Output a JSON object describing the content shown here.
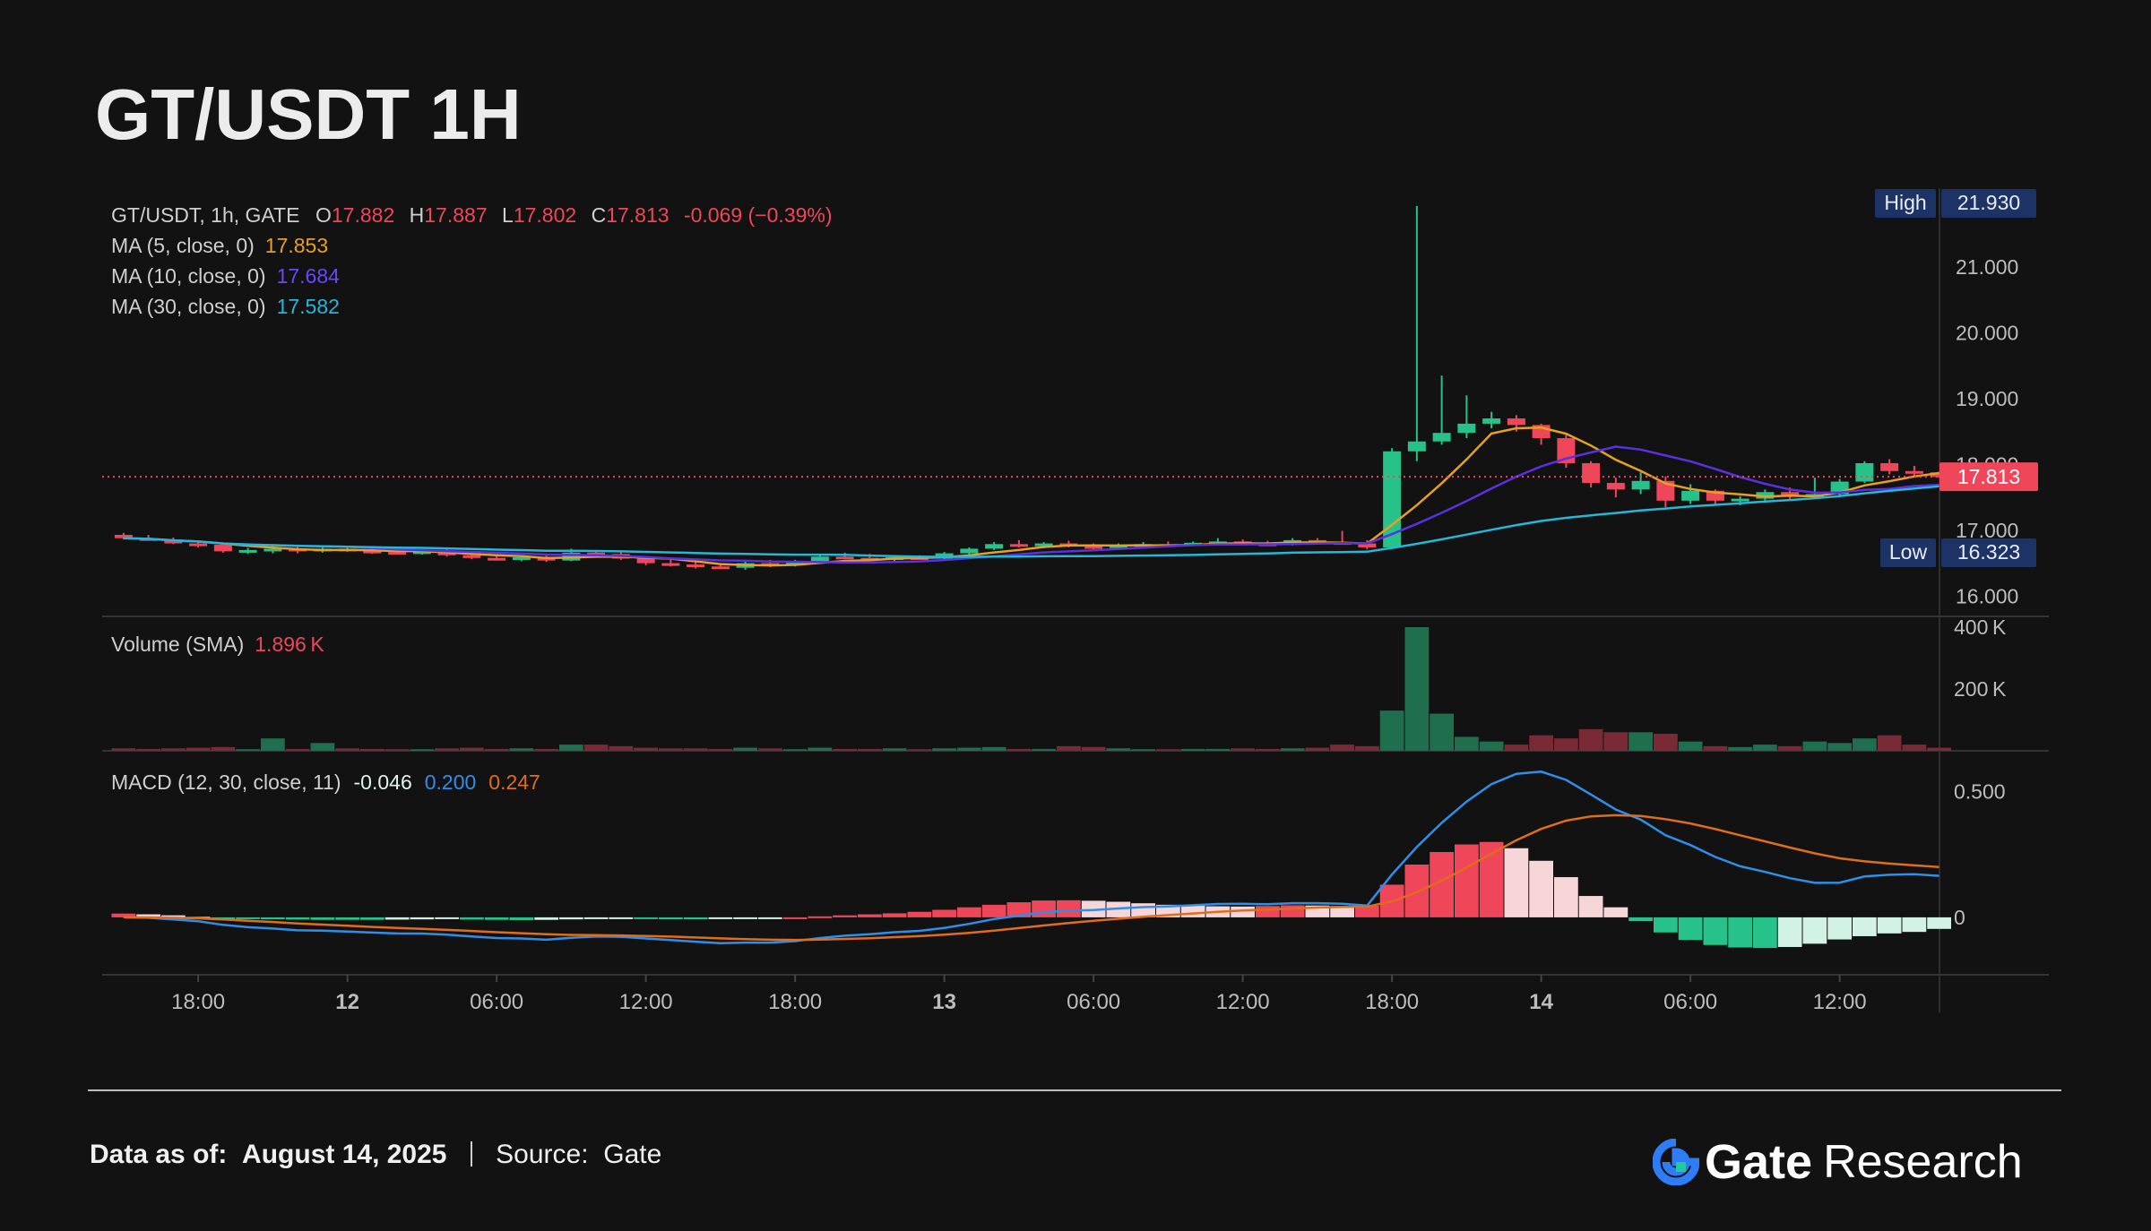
{
  "header": {
    "title": "GT/USDT 1H"
  },
  "legend": {
    "symbol": "GT/USDT, 1h, GATE",
    "o_label": "O",
    "o": "17.882",
    "h_label": "H",
    "h": "17.887",
    "l_label": "L",
    "l": "17.802",
    "c_label": "C",
    "c": "17.813",
    "change": "-0.069 (−0.39%)",
    "ma5_label": "MA (5, close, 0)",
    "ma5": "17.853",
    "ma10_label": "MA (10, close, 0)",
    "ma10": "17.684",
    "ma30_label": "MA (30, close, 0)",
    "ma30": "17.582",
    "volume_label": "Volume (SMA)",
    "volume": "1.896 K",
    "macd_label": "MACD (12, 30, close, 11)",
    "macd_hist": "-0.046",
    "macd_line": "0.200",
    "macd_signal": "0.247"
  },
  "badges": {
    "high_label": "High",
    "high": "21.930",
    "low_label": "Low",
    "low": "16.323",
    "last": "17.813"
  },
  "colors": {
    "up": "#26c28a",
    "down": "#f0465a",
    "ma5": "#e8a020",
    "ma10": "#5a30e0",
    "ma30": "#25b6d8",
    "macd": "#2f8fe8",
    "signal": "#e06d1a",
    "badge_bg": "#1d3366"
  },
  "chart_data": {
    "type": "candlestick",
    "interval": "1h",
    "price_axis": {
      "ticks": [
        "16.000",
        "17.000",
        "18.000",
        "19.000",
        "20.000",
        "21.000"
      ],
      "ylim": [
        15.8,
        22.2
      ]
    },
    "volume_axis": {
      "ticks": [
        "200 K",
        "400 K"
      ],
      "ylim": [
        0,
        400000
      ]
    },
    "macd_axis": {
      "ticks": [
        "0",
        "0.500"
      ],
      "ylim": [
        -0.2,
        0.62
      ]
    },
    "x_ticks": [
      "18:00",
      "12",
      "06:00",
      "12:00",
      "18:00",
      "13",
      "06:00",
      "12:00",
      "18:00",
      "14",
      "06:00",
      "12:00"
    ],
    "x_tick_bold": [
      false,
      true,
      false,
      false,
      false,
      true,
      false,
      false,
      false,
      true,
      false,
      false
    ],
    "x_tick_index": [
      3.5,
      9.5,
      15.5,
      21.5,
      27.5,
      33.5,
      39.5,
      45.5,
      51.5,
      57.5,
      63.5,
      69.5
    ],
    "candles": [
      {
        "o": 16.93,
        "h": 16.96,
        "l": 16.86,
        "c": 16.88,
        "v": 8000
      },
      {
        "o": 16.88,
        "h": 16.93,
        "l": 16.84,
        "c": 16.86,
        "v": 6000
      },
      {
        "o": 16.86,
        "h": 16.89,
        "l": 16.79,
        "c": 16.8,
        "v": 8000
      },
      {
        "o": 16.8,
        "h": 16.84,
        "l": 16.74,
        "c": 16.78,
        "v": 10000
      },
      {
        "o": 16.78,
        "h": 16.81,
        "l": 16.66,
        "c": 16.68,
        "v": 12000
      },
      {
        "o": 16.68,
        "h": 16.73,
        "l": 16.64,
        "c": 16.7,
        "v": 5000
      },
      {
        "o": 16.7,
        "h": 16.76,
        "l": 16.65,
        "c": 16.72,
        "v": 40000
      },
      {
        "o": 16.72,
        "h": 16.76,
        "l": 16.65,
        "c": 16.68,
        "v": 6000
      },
      {
        "o": 16.68,
        "h": 16.74,
        "l": 16.66,
        "c": 16.72,
        "v": 25000
      },
      {
        "o": 16.72,
        "h": 16.75,
        "l": 16.67,
        "c": 16.69,
        "v": 8000
      },
      {
        "o": 16.69,
        "h": 16.72,
        "l": 16.64,
        "c": 16.67,
        "v": 6000
      },
      {
        "o": 16.67,
        "h": 16.71,
        "l": 16.64,
        "c": 16.66,
        "v": 5000
      },
      {
        "o": 16.66,
        "h": 16.7,
        "l": 16.63,
        "c": 16.68,
        "v": 5000
      },
      {
        "o": 16.68,
        "h": 16.71,
        "l": 16.6,
        "c": 16.62,
        "v": 8000
      },
      {
        "o": 16.62,
        "h": 16.66,
        "l": 16.56,
        "c": 16.58,
        "v": 10000
      },
      {
        "o": 16.58,
        "h": 16.63,
        "l": 16.54,
        "c": 16.56,
        "v": 6000
      },
      {
        "o": 16.56,
        "h": 16.61,
        "l": 16.53,
        "c": 16.59,
        "v": 8000
      },
      {
        "o": 16.59,
        "h": 16.62,
        "l": 16.52,
        "c": 16.54,
        "v": 6000
      },
      {
        "o": 16.54,
        "h": 16.72,
        "l": 16.53,
        "c": 16.66,
        "v": 20000
      },
      {
        "o": 16.66,
        "h": 16.7,
        "l": 16.61,
        "c": 16.64,
        "v": 20000
      },
      {
        "o": 16.64,
        "h": 16.68,
        "l": 16.55,
        "c": 16.57,
        "v": 15000
      },
      {
        "o": 16.57,
        "h": 16.61,
        "l": 16.47,
        "c": 16.5,
        "v": 10000
      },
      {
        "o": 16.5,
        "h": 16.56,
        "l": 16.45,
        "c": 16.48,
        "v": 8000
      },
      {
        "o": 16.48,
        "h": 16.52,
        "l": 16.42,
        "c": 16.45,
        "v": 8000
      },
      {
        "o": 16.45,
        "h": 16.5,
        "l": 16.41,
        "c": 16.43,
        "v": 6000
      },
      {
        "o": 16.43,
        "h": 16.53,
        "l": 16.4,
        "c": 16.5,
        "v": 10000
      },
      {
        "o": 16.5,
        "h": 16.55,
        "l": 16.44,
        "c": 16.47,
        "v": 8000
      },
      {
        "o": 16.47,
        "h": 16.55,
        "l": 16.45,
        "c": 16.52,
        "v": 5000
      },
      {
        "o": 16.52,
        "h": 16.62,
        "l": 16.5,
        "c": 16.6,
        "v": 10000
      },
      {
        "o": 16.6,
        "h": 16.66,
        "l": 16.56,
        "c": 16.58,
        "v": 6000
      },
      {
        "o": 16.58,
        "h": 16.64,
        "l": 16.54,
        "c": 16.56,
        "v": 6000
      },
      {
        "o": 16.56,
        "h": 16.61,
        "l": 16.53,
        "c": 16.59,
        "v": 8000
      },
      {
        "o": 16.59,
        "h": 16.62,
        "l": 16.55,
        "c": 16.57,
        "v": 5000
      },
      {
        "o": 16.57,
        "h": 16.67,
        "l": 16.56,
        "c": 16.65,
        "v": 8000
      },
      {
        "o": 16.65,
        "h": 16.74,
        "l": 16.63,
        "c": 16.72,
        "v": 10000
      },
      {
        "o": 16.72,
        "h": 16.82,
        "l": 16.7,
        "c": 16.79,
        "v": 12000
      },
      {
        "o": 16.79,
        "h": 16.85,
        "l": 16.74,
        "c": 16.77,
        "v": 6000
      },
      {
        "o": 16.77,
        "h": 16.82,
        "l": 16.73,
        "c": 16.8,
        "v": 6000
      },
      {
        "o": 16.8,
        "h": 16.84,
        "l": 16.74,
        "c": 16.76,
        "v": 15000
      },
      {
        "o": 16.76,
        "h": 16.8,
        "l": 16.7,
        "c": 16.73,
        "v": 12000
      },
      {
        "o": 16.73,
        "h": 16.8,
        "l": 16.7,
        "c": 16.78,
        "v": 8000
      },
      {
        "o": 16.78,
        "h": 16.82,
        "l": 16.75,
        "c": 16.79,
        "v": 5000
      },
      {
        "o": 16.79,
        "h": 16.83,
        "l": 16.76,
        "c": 16.78,
        "v": 5000
      },
      {
        "o": 16.78,
        "h": 16.83,
        "l": 16.76,
        "c": 16.81,
        "v": 6000
      },
      {
        "o": 16.81,
        "h": 16.88,
        "l": 16.79,
        "c": 16.83,
        "v": 6000
      },
      {
        "o": 16.83,
        "h": 16.86,
        "l": 16.78,
        "c": 16.8,
        "v": 8000
      },
      {
        "o": 16.8,
        "h": 16.84,
        "l": 16.76,
        "c": 16.78,
        "v": 6000
      },
      {
        "o": 16.78,
        "h": 16.88,
        "l": 16.77,
        "c": 16.85,
        "v": 8000
      },
      {
        "o": 16.85,
        "h": 16.88,
        "l": 16.79,
        "c": 16.82,
        "v": 10000
      },
      {
        "o": 16.82,
        "h": 16.99,
        "l": 16.79,
        "c": 16.8,
        "v": 20000
      },
      {
        "o": 16.8,
        "h": 16.85,
        "l": 16.71,
        "c": 16.74,
        "v": 15000
      },
      {
        "o": 16.74,
        "h": 18.25,
        "l": 16.72,
        "c": 18.2,
        "v": 130000
      },
      {
        "o": 18.2,
        "h": 21.93,
        "l": 18.05,
        "c": 18.35,
        "v": 400000
      },
      {
        "o": 18.35,
        "h": 19.35,
        "l": 18.3,
        "c": 18.48,
        "v": 120000
      },
      {
        "o": 18.48,
        "h": 19.05,
        "l": 18.4,
        "c": 18.62,
        "v": 45000
      },
      {
        "o": 18.62,
        "h": 18.8,
        "l": 18.55,
        "c": 18.7,
        "v": 30000
      },
      {
        "o": 18.7,
        "h": 18.75,
        "l": 18.5,
        "c": 18.6,
        "v": 20000
      },
      {
        "o": 18.6,
        "h": 18.62,
        "l": 18.3,
        "c": 18.4,
        "v": 50000
      },
      {
        "o": 18.4,
        "h": 18.45,
        "l": 17.95,
        "c": 18.02,
        "v": 40000
      },
      {
        "o": 18.02,
        "h": 18.05,
        "l": 17.65,
        "c": 17.72,
        "v": 70000
      },
      {
        "o": 17.72,
        "h": 17.8,
        "l": 17.5,
        "c": 17.62,
        "v": 60000
      },
      {
        "o": 17.62,
        "h": 17.88,
        "l": 17.55,
        "c": 17.75,
        "v": 60000
      },
      {
        "o": 17.75,
        "h": 17.82,
        "l": 17.35,
        "c": 17.45,
        "v": 55000
      },
      {
        "o": 17.45,
        "h": 17.7,
        "l": 17.4,
        "c": 17.6,
        "v": 30000
      },
      {
        "o": 17.6,
        "h": 17.62,
        "l": 17.4,
        "c": 17.45,
        "v": 15000
      },
      {
        "o": 17.45,
        "h": 17.52,
        "l": 17.38,
        "c": 17.48,
        "v": 12000
      },
      {
        "o": 17.48,
        "h": 17.62,
        "l": 17.45,
        "c": 17.58,
        "v": 20000
      },
      {
        "o": 17.58,
        "h": 17.65,
        "l": 17.45,
        "c": 17.52,
        "v": 15000
      },
      {
        "o": 17.52,
        "h": 17.8,
        "l": 17.48,
        "c": 17.55,
        "v": 30000
      },
      {
        "o": 17.55,
        "h": 17.78,
        "l": 17.52,
        "c": 17.74,
        "v": 25000
      },
      {
        "o": 17.74,
        "h": 18.05,
        "l": 17.72,
        "c": 18.02,
        "v": 40000
      },
      {
        "o": 18.02,
        "h": 18.08,
        "l": 17.85,
        "c": 17.9,
        "v": 50000
      },
      {
        "o": 17.9,
        "h": 17.98,
        "l": 17.82,
        "c": 17.88,
        "v": 20000
      },
      {
        "o": 17.88,
        "h": 17.89,
        "l": 17.8,
        "c": 17.81,
        "v": 10000
      }
    ],
    "macd": {
      "hist": [
        0.015,
        0.012,
        0.008,
        0.002,
        -0.003,
        -0.006,
        -0.008,
        -0.009,
        -0.01,
        -0.01,
        -0.01,
        -0.009,
        -0.008,
        -0.007,
        -0.009,
        -0.01,
        -0.011,
        -0.01,
        -0.008,
        -0.006,
        -0.004,
        -0.006,
        -0.008,
        -0.008,
        -0.007,
        -0.005,
        -0.003,
        0.0,
        0.004,
        0.008,
        0.012,
        0.016,
        0.022,
        0.03,
        0.04,
        0.05,
        0.06,
        0.067,
        0.068,
        0.066,
        0.062,
        0.056,
        0.05,
        0.046,
        0.044,
        0.043,
        0.045,
        0.048,
        0.047,
        0.045,
        0.046,
        0.13,
        0.21,
        0.26,
        0.29,
        0.3,
        0.275,
        0.225,
        0.16,
        0.085,
        0.04,
        -0.015,
        -0.06,
        -0.09,
        -0.11,
        -0.12,
        -0.122,
        -0.118,
        -0.105,
        -0.088,
        -0.075,
        -0.064,
        -0.058,
        -0.046
      ]
    }
  },
  "footer": {
    "date_label": "Data as of:",
    "date": "August 14, 2025",
    "source_label": "Source:",
    "source": "Gate",
    "brand_a": "Gate",
    "brand_b": "Research"
  }
}
